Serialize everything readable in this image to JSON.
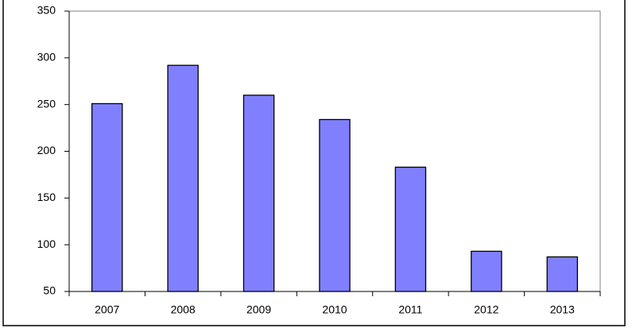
{
  "chart_data": {
    "type": "bar",
    "categories": [
      "2007",
      "2008",
      "2009",
      "2010",
      "2011",
      "2012",
      "2013"
    ],
    "values": [
      251,
      292,
      260,
      234,
      183,
      93,
      87
    ],
    "color": "#8080ff",
    "ylim": [
      50,
      350
    ],
    "yticks": [
      50,
      100,
      150,
      200,
      250,
      300,
      350
    ],
    "grid": false
  }
}
